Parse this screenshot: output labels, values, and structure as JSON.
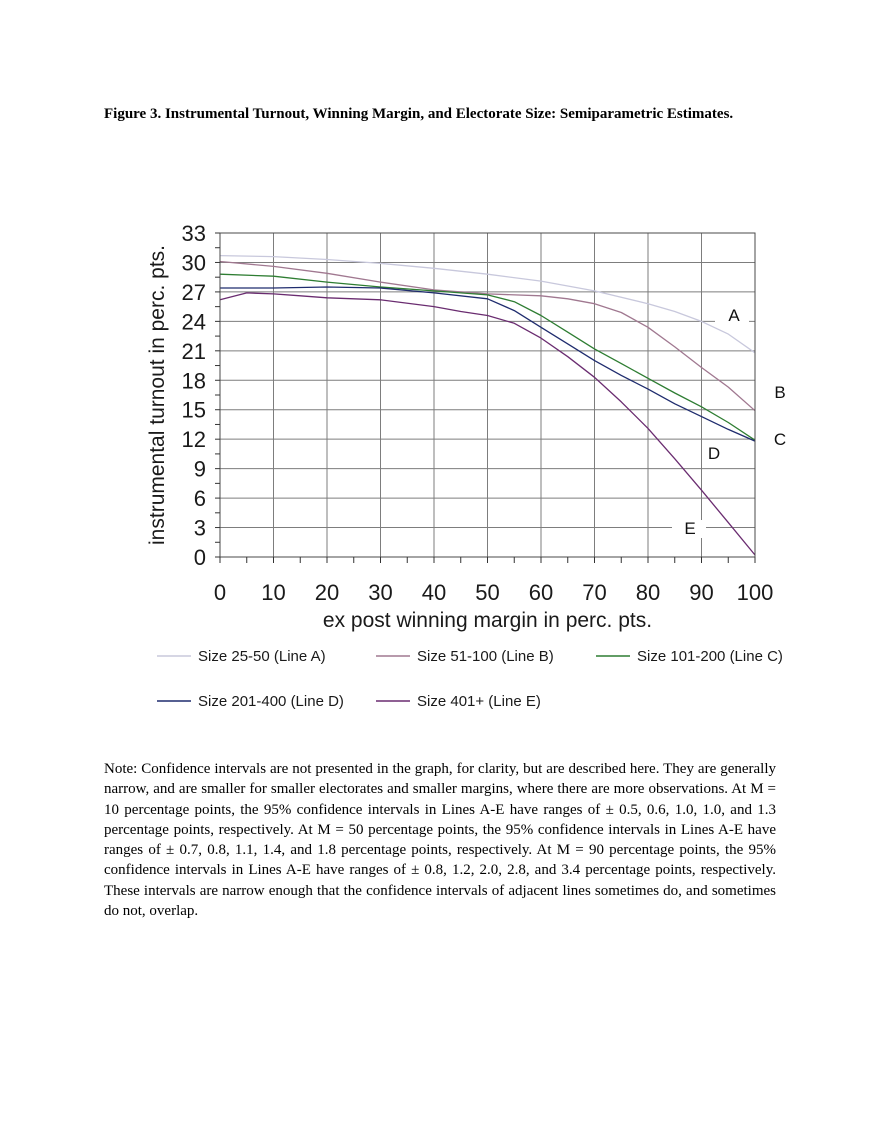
{
  "figure": {
    "title": "Figure 3. Instrumental Turnout, Winning Margin, and Electorate Size: Semiparametric Estimates."
  },
  "note": "Note: Confidence intervals are not presented in the graph, for clarity, but are described here. They are generally narrow, and are smaller for smaller electorates and smaller margins, where there are more observations. At M = 10 percentage points, the 95% confidence intervals in Lines A-E have ranges of ± 0.5, 0.6, 1.0, 1.0, and 1.3 percentage points, respectively. At M = 50 percentage points, the 95% confidence intervals in Lines A-E have ranges of ± 0.7, 0.8, 1.1, 1.4, and 1.8 percentage points, respectively. At M = 90 percentage points, the 95% confidence intervals in Lines A-E have ranges of ± 0.8, 1.2, 2.0, 2.8, and 3.4 percentage points, respectively. These intervals are narrow enough that the confidence intervals of adjacent lines sometimes do, and sometimes do not, overlap.",
  "chart_data": {
    "type": "line",
    "xlabel": "ex post winning margin in perc. pts.",
    "ylabel": "instrumental turnout in perc. pts.",
    "xlim": [
      0,
      100
    ],
    "ylim": [
      0,
      33
    ],
    "xticks": [
      0,
      10,
      20,
      30,
      40,
      50,
      60,
      70,
      80,
      90,
      100
    ],
    "yticks": [
      0,
      3,
      6,
      9,
      12,
      15,
      18,
      21,
      24,
      27,
      30,
      33
    ],
    "grid": true,
    "legend_position": "bottom",
    "series": [
      {
        "name": "Size 25-50 (Line A)",
        "line_label": "A",
        "color": "#c8c8dc",
        "x": [
          0,
          10,
          20,
          30,
          40,
          50,
          60,
          70,
          80,
          85,
          90,
          95,
          100
        ],
        "y": [
          30.7,
          30.6,
          30.3,
          29.9,
          29.4,
          28.8,
          28.1,
          27.1,
          25.8,
          25.0,
          24.0,
          22.7,
          20.8
        ]
      },
      {
        "name": "Size 51-100 (Line B)",
        "line_label": "B",
        "color": "#a07890",
        "x": [
          0,
          10,
          20,
          30,
          40,
          50,
          60,
          65,
          70,
          75,
          80,
          85,
          90,
          95,
          100
        ],
        "y": [
          30.1,
          29.6,
          28.9,
          28.0,
          27.2,
          26.8,
          26.6,
          26.3,
          25.8,
          24.9,
          23.4,
          21.4,
          19.3,
          17.3,
          14.9
        ]
      },
      {
        "name": "Size 101-200 (Line C)",
        "line_label": "C",
        "color": "#2e7d32",
        "x": [
          0,
          10,
          20,
          30,
          40,
          50,
          55,
          60,
          65,
          70,
          75,
          80,
          85,
          90,
          95,
          100
        ],
        "y": [
          28.8,
          28.6,
          28.0,
          27.5,
          27.1,
          26.7,
          26.0,
          24.6,
          22.9,
          21.2,
          19.7,
          18.2,
          16.7,
          15.3,
          13.7,
          11.9
        ]
      },
      {
        "name": "Size 201-400 (Line D)",
        "line_label": "D",
        "color": "#1f2c6e",
        "x": [
          0,
          10,
          20,
          30,
          40,
          50,
          55,
          60,
          65,
          70,
          75,
          80,
          85,
          90,
          95,
          100
        ],
        "y": [
          27.4,
          27.4,
          27.5,
          27.4,
          26.9,
          26.3,
          25.1,
          23.4,
          21.7,
          20.0,
          18.5,
          17.1,
          15.6,
          14.3,
          13.0,
          11.8
        ]
      },
      {
        "name": "Size 401+ (Line E)",
        "line_label": "E",
        "color": "#6a2c70",
        "x": [
          0,
          5,
          10,
          15,
          20,
          30,
          40,
          45,
          50,
          55,
          60,
          65,
          70,
          75,
          80,
          85,
          90,
          95,
          100
        ],
        "y": [
          26.2,
          26.9,
          26.8,
          26.6,
          26.4,
          26.2,
          25.5,
          25.0,
          24.6,
          23.8,
          22.3,
          20.4,
          18.3,
          15.8,
          13.1,
          10.0,
          6.8,
          3.5,
          0.2
        ]
      }
    ]
  }
}
